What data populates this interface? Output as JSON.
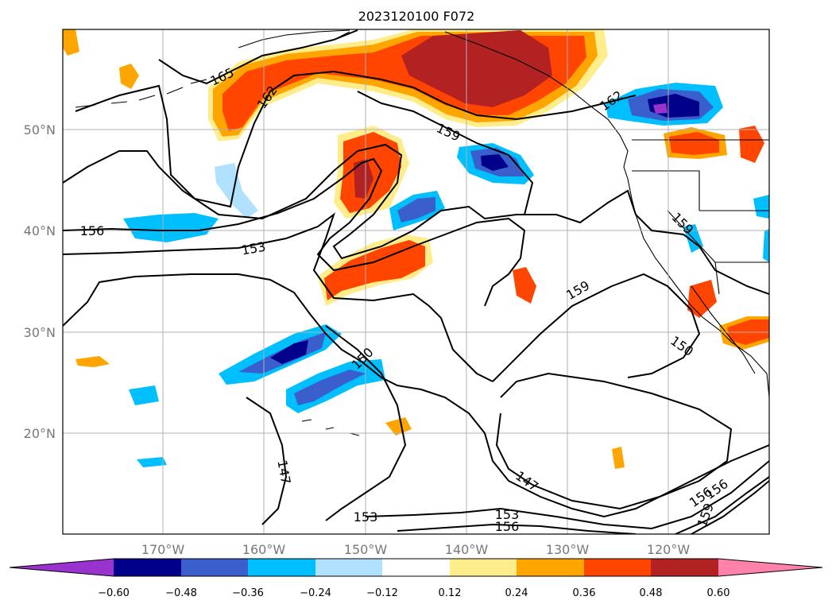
{
  "title": "2023120100 F072",
  "map": {
    "lat_labels": [
      "50°N",
      "40°N",
      "30°N",
      "20°N"
    ],
    "lon_labels": [
      "170°W",
      "160°W",
      "150°W",
      "140°W",
      "130°W",
      "120°W"
    ],
    "contour_labels": [
      "165",
      "162",
      "159",
      "162",
      "156",
      "153",
      "159",
      "159",
      "150",
      "150",
      "147",
      "147",
      "153",
      "153",
      "156",
      "156",
      "156",
      "159"
    ]
  },
  "colorbar": {
    "ticks": [
      "−0.60",
      "−0.48",
      "−0.36",
      "−0.24",
      "−0.12",
      "0.12",
      "0.24",
      "0.36",
      "0.48",
      "0.60"
    ],
    "colors": [
      "#9a32cd",
      "#00008b",
      "#3a5fcd",
      "#00bfff",
      "#b0e2ff",
      "#ffffff",
      "#ffec8b",
      "#ffa500",
      "#ff4500",
      "#b22222",
      "#ff82ab"
    ]
  },
  "colors": {
    "dark_red": "#b22222",
    "red_orange": "#ff4500",
    "orange": "#ffa500",
    "yellow": "#ffec8b",
    "purple": "#9a32cd",
    "navy": "#00008b",
    "royal_blue": "#3a5fcd",
    "sky_blue": "#00bfff",
    "pale_blue": "#b0e2ff"
  }
}
